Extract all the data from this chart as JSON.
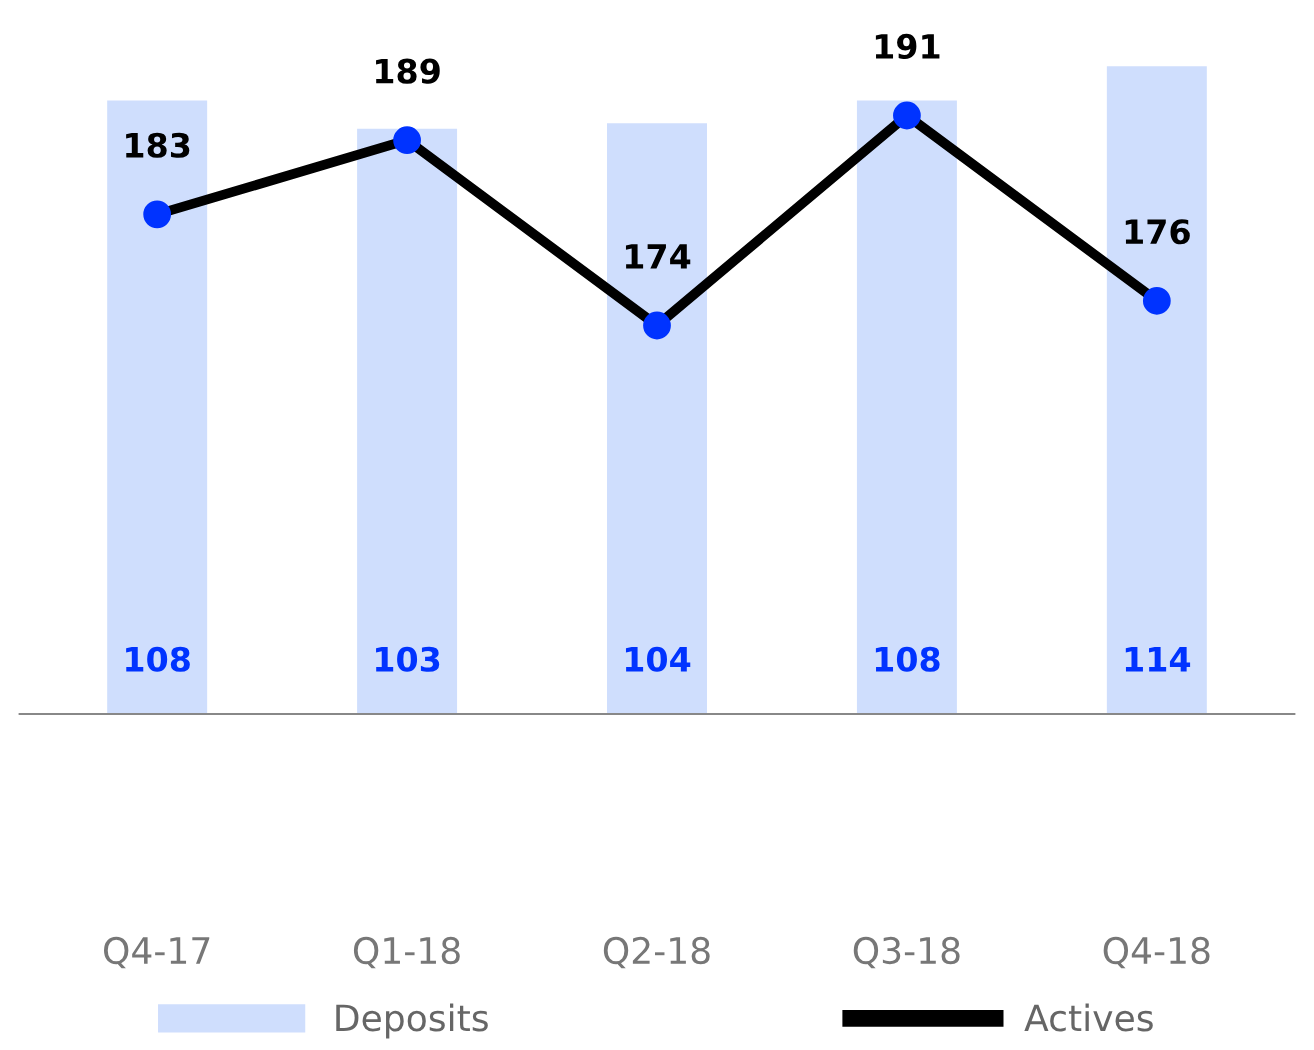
{
  "chart_data": {
    "type": "bar",
    "categories": [
      "Q4-17",
      "Q1-18",
      "Q2-18",
      "Q3-18",
      "Q4-18"
    ],
    "series": [
      {
        "name": "Deposits",
        "color": "#cfdefd",
        "values": [
          108,
          103,
          104,
          108,
          114
        ]
      },
      {
        "name": "Actives",
        "type": "line",
        "axis": "y2",
        "color": "#000000",
        "values": [
          183,
          189,
          174,
          191,
          176
        ]
      }
    ],
    "data_labels": true,
    "marker": "circle",
    "legend": "bottom",
    "tick_labels": "x",
    "grid": false
  }
}
